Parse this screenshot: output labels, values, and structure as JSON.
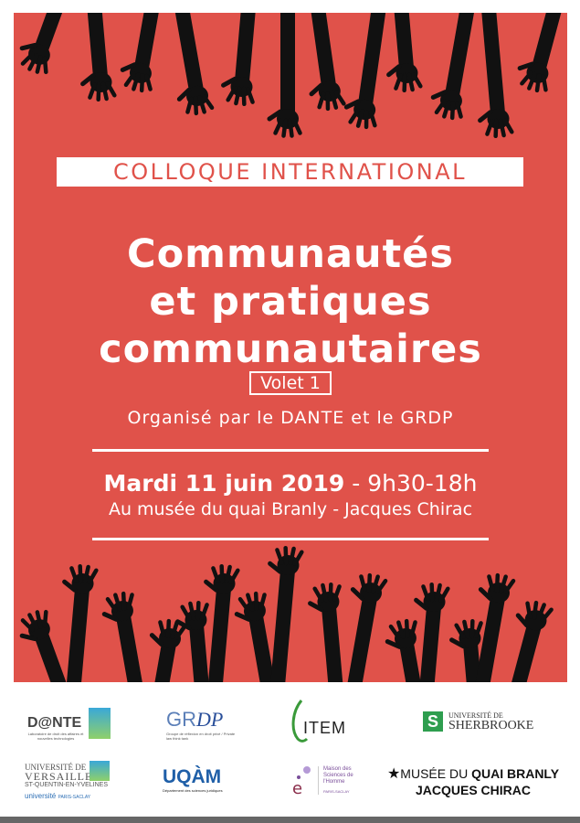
{
  "poster": {
    "background_color": "#e0524a",
    "kicker": "COLLOQUE INTERNATIONAL",
    "title_lines": [
      "Communautés",
      "et pratiques",
      "communautaires"
    ],
    "volet": "Volet 1",
    "organizers": "Organisé par le DANTE et le GRDP",
    "date": "Mardi 11 juin 2019",
    "time": "- 9h30-18h",
    "venue": "Au musée du quai Branly - Jacques Chirac"
  },
  "logos": {
    "dante": {
      "name": "D@NTE",
      "subtitle": "Laboratoire de droit des affaires et nouvelles technologies"
    },
    "grdp": {
      "gr": "GR",
      "dp": "DP",
      "subtitle": "Groupe de réflexion en droit privé / Private law think tank"
    },
    "item": {
      "name": "ITEM"
    },
    "sherbrooke": {
      "line1": "UNIVERSITÉ DE",
      "line2": "SHERBROOKE",
      "color": "#2e9e4f"
    },
    "uvsq": {
      "line1": "UNIVERSITÉ DE",
      "line2": "VERSAILLES",
      "line3": "ST-QUENTIN-EN-YVELINES",
      "saclay_a": "université",
      "saclay_b": "PARIS-SACLAY"
    },
    "uqam": {
      "name": "UQÀM",
      "subtitle": "Département des sciences juridiques",
      "color": "#1f5fa8"
    },
    "msh": {
      "line1": "Maison des",
      "line2": "Sciences de",
      "line3": "l'Homme",
      "line4": "PARIS-SACLAY",
      "color": "#7a4e9a"
    },
    "quai_branly": {
      "line1_a": "MUSÉE DU ",
      "line1_b": "QUAI BRANLY",
      "line2": "JACQUES CHIRAC"
    }
  }
}
